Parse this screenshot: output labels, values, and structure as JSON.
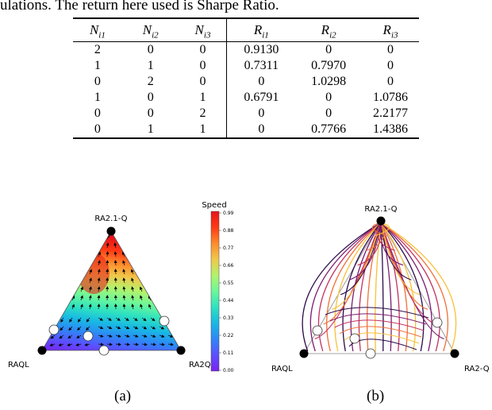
{
  "caption_fragment": "ulations. The return here used is Sharpe Ratio.",
  "table": {
    "headers": [
      {
        "base": "N",
        "sub": "i1"
      },
      {
        "base": "N",
        "sub": "i2"
      },
      {
        "base": "N",
        "sub": "i3"
      },
      {
        "base": "R",
        "sub": "i1"
      },
      {
        "base": "R",
        "sub": "i2"
      },
      {
        "base": "R",
        "sub": "i3"
      }
    ],
    "rows": [
      [
        "2",
        "0",
        "0",
        "0.9130",
        "0",
        "0"
      ],
      [
        "1",
        "1",
        "0",
        "0.7311",
        "0.7970",
        "0"
      ],
      [
        "0",
        "2",
        "0",
        "0",
        "1.0298",
        "0"
      ],
      [
        "1",
        "0",
        "1",
        "0.6791",
        "0",
        "1.0786"
      ],
      [
        "0",
        "0",
        "2",
        "0",
        "0",
        "2.2177"
      ],
      [
        "0",
        "1",
        "1",
        "0",
        "0.7766",
        "1.4386"
      ]
    ]
  },
  "figure_a": {
    "label": "(a)",
    "vertex_top": "RA2.1-Q",
    "vertex_left": "RAQL",
    "vertex_right": "RA2Q",
    "colorbar_title": "Speed",
    "colorbar_ticks": [
      "0.99",
      "0.88",
      "0.77",
      "0.66",
      "0.55",
      "0.44",
      "0.33",
      "0.22",
      "0.11",
      "0.00"
    ],
    "colormap": [
      "#7b22ee",
      "#5b50ff",
      "#2f86f6",
      "#18b8e4",
      "#2ee2c0",
      "#6cf79a",
      "#b2f36c",
      "#f0c84a",
      "#ff8a2c",
      "#ff3a16",
      "#e8141a"
    ]
  },
  "figure_b": {
    "label": "(b)",
    "vertex_top": "RA2.1-Q",
    "vertex_left": "RAQL",
    "vertex_right": "RA2-Q",
    "trajectory_colors": [
      "#2a0b4a",
      "#7c1d6f",
      "#c2305f",
      "#f0703a",
      "#f9c13b"
    ]
  }
}
